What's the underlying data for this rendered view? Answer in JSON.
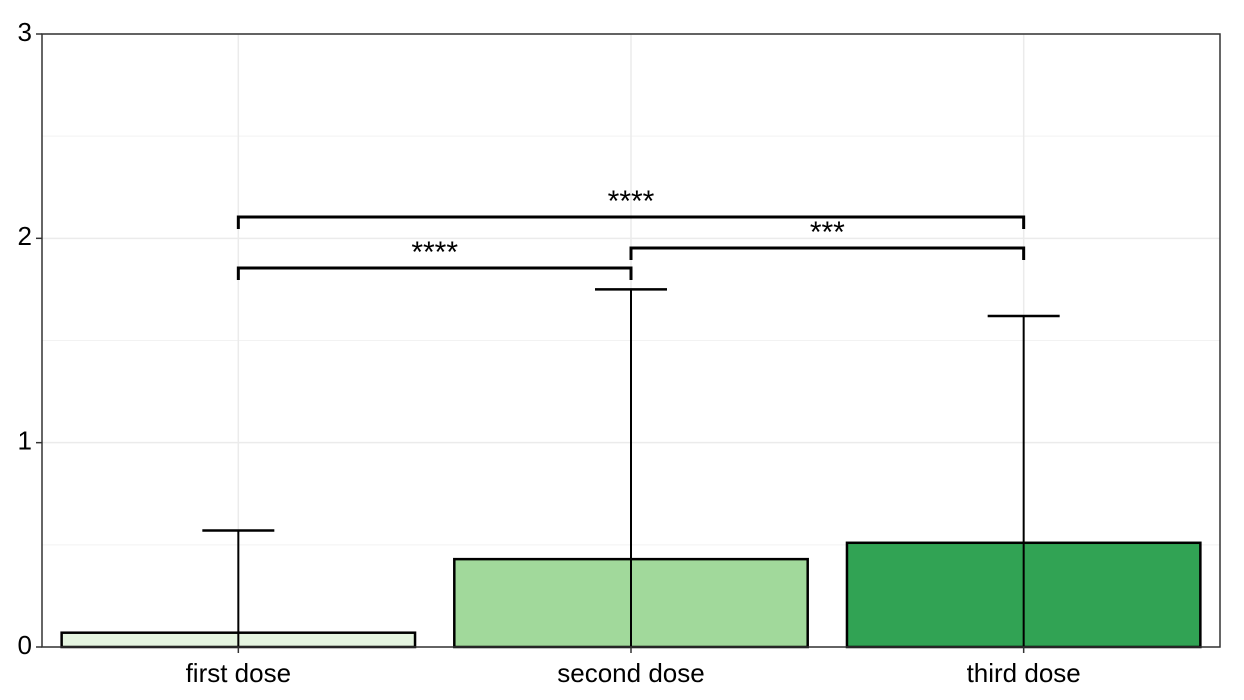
{
  "chart_data": {
    "type": "bar",
    "categories": [
      "first dose",
      "second dose",
      "third dose"
    ],
    "values": [
      0.07,
      0.43,
      0.51
    ],
    "errors": [
      0.5,
      1.32,
      1.11
    ],
    "colors": [
      "#e5f5e0",
      "#a1d99b",
      "#31a354"
    ],
    "ylim": [
      0,
      3
    ],
    "yticks": [
      0,
      1,
      2,
      3
    ],
    "grid": true,
    "significance": [
      {
        "groups": [
          0,
          1
        ],
        "label": "****"
      },
      {
        "groups": [
          1,
          2
        ],
        "label": "***"
      },
      {
        "groups": [
          0,
          2
        ],
        "label": "****"
      }
    ]
  }
}
